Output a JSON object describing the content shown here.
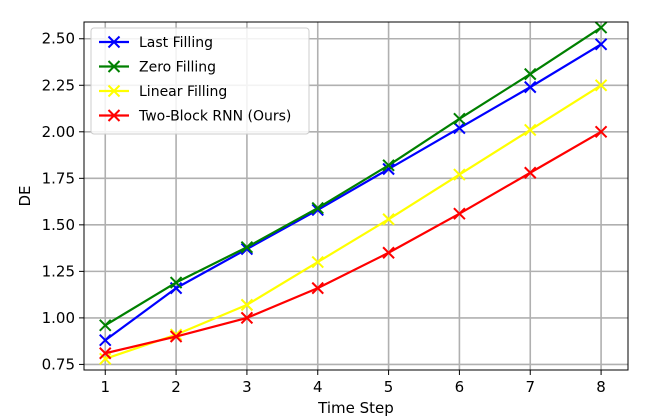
{
  "chart_data": {
    "type": "line",
    "xlabel": "Time Step",
    "ylabel": "DE",
    "x": [
      1,
      2,
      3,
      4,
      5,
      6,
      7,
      8
    ],
    "xlim": [
      0.7,
      8.38
    ],
    "ylim": [
      0.72,
      2.59
    ],
    "xticks": [
      1,
      2,
      3,
      4,
      5,
      6,
      7,
      8
    ],
    "yticks": [
      0.75,
      1.0,
      1.25,
      1.5,
      1.75,
      2.0,
      2.25,
      2.5
    ],
    "ytick_labels": [
      "0.75",
      "1.00",
      "1.25",
      "1.50",
      "1.75",
      "2.00",
      "2.25",
      "2.50"
    ],
    "grid": true,
    "legend_position": "top-left",
    "marker": "x",
    "series": [
      {
        "name": "Last Filling",
        "color": "#0000ff",
        "values": [
          0.88,
          1.16,
          1.37,
          1.58,
          1.8,
          2.02,
          2.24,
          2.47
        ]
      },
      {
        "name": "Zero Filling",
        "color": "#008000",
        "values": [
          0.96,
          1.19,
          1.38,
          1.59,
          1.82,
          2.07,
          2.31,
          2.56
        ]
      },
      {
        "name": "Linear Filling",
        "color": "#ffff00",
        "values": [
          0.78,
          0.91,
          1.07,
          1.3,
          1.53,
          1.77,
          2.01,
          2.25
        ]
      },
      {
        "name": "Two-Block RNN (Ours)",
        "color": "#ff0000",
        "values": [
          0.81,
          0.9,
          1.0,
          1.16,
          1.35,
          1.56,
          1.78,
          2.0
        ]
      }
    ]
  }
}
